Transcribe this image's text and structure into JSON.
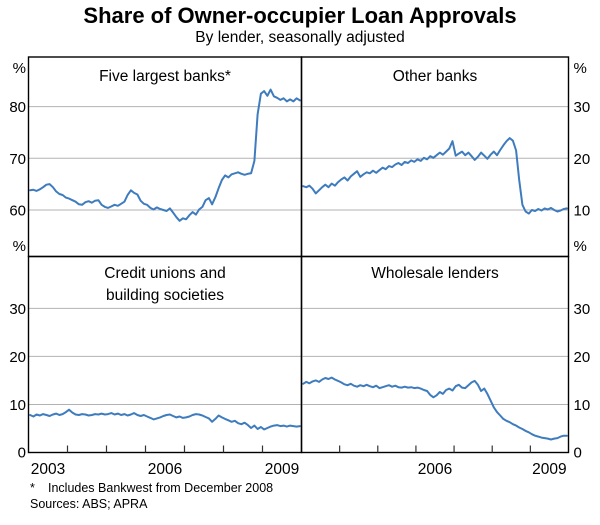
{
  "header": {
    "title": "Share of Owner-occupier Loan Approvals",
    "subtitle": "By lender, seasonally adjusted"
  },
  "footnotes": {
    "marker": "*",
    "note": "Includes Bankwest from December 2008",
    "sources": "Sources: ABS; APRA"
  },
  "chart_data": {
    "type": "line",
    "title": "Share of Owner-occupier Loan Approvals",
    "subtitle": "By lender, seasonally adjusted",
    "unit": "%",
    "frequency": "monthly",
    "start": "2003-01",
    "end": "2009-12",
    "x_range": [
      2003,
      2010
    ],
    "x_ticks": [
      2004,
      2005,
      2006,
      2007,
      2008,
      2009
    ],
    "line_color": "#3E7CBE",
    "grid_color": "#b3b3b3",
    "border_color": "#000000",
    "panels": [
      {
        "key": "five_largest_banks",
        "title_lines": [
          "Five largest banks*"
        ],
        "position": "top-left",
        "axis_side": "left",
        "unit_label": "%",
        "ylim": [
          51,
          89.6
        ],
        "gridlines": [
          60,
          70,
          80
        ],
        "zero_label": false,
        "x_labels": [],
        "series": [
          63.8,
          63.9,
          63.7,
          64.0,
          64.4,
          64.9,
          65.0,
          64.4,
          63.6,
          63.1,
          62.9,
          62.4,
          62.2,
          61.9,
          61.6,
          61.1,
          61.0,
          61.5,
          61.7,
          61.4,
          61.8,
          61.9,
          61.0,
          60.6,
          60.4,
          60.7,
          61.0,
          60.8,
          61.2,
          61.6,
          62.9,
          63.8,
          63.3,
          63.0,
          61.8,
          61.2,
          61.0,
          60.4,
          60.1,
          60.5,
          60.2,
          60.0,
          59.8,
          60.3,
          59.5,
          58.6,
          57.9,
          58.4,
          58.2,
          59.0,
          59.6,
          59.1,
          60.1,
          60.6,
          61.9,
          62.3,
          61.1,
          62.5,
          64.2,
          65.8,
          66.7,
          66.3,
          66.9,
          67.1,
          67.3,
          67.0,
          66.8,
          67.0,
          67.1,
          69.5,
          78.5,
          82.5,
          83.0,
          82.1,
          83.3,
          82.0,
          81.7,
          81.3,
          81.6,
          81.0,
          81.4,
          81.0,
          81.6,
          81.2
        ]
      },
      {
        "key": "other_banks",
        "title_lines": [
          "Other banks"
        ],
        "position": "top-right",
        "axis_side": "right",
        "unit_label": "%",
        "ylim": [
          1,
          39.6
        ],
        "gridlines": [
          10,
          20,
          30
        ],
        "zero_label": false,
        "x_labels": [],
        "series": [
          14.6,
          14.4,
          14.7,
          14.1,
          13.2,
          13.8,
          14.4,
          14.9,
          14.4,
          15.1,
          14.7,
          15.4,
          15.9,
          16.3,
          15.7,
          16.5,
          17.0,
          17.5,
          16.4,
          16.9,
          17.3,
          17.1,
          17.6,
          17.2,
          17.7,
          18.2,
          17.9,
          18.5,
          18.3,
          18.8,
          19.1,
          18.7,
          19.3,
          19.1,
          19.6,
          19.3,
          19.8,
          19.5,
          20.1,
          19.8,
          20.4,
          20.1,
          20.6,
          21.1,
          20.7,
          21.3,
          21.9,
          23.3,
          20.5,
          20.9,
          21.3,
          20.6,
          21.1,
          20.4,
          19.7,
          20.3,
          21.1,
          20.5,
          19.9,
          20.7,
          21.3,
          20.6,
          21.6,
          22.5,
          23.3,
          23.9,
          23.4,
          21.5,
          15.8,
          11.0,
          9.7,
          9.3,
          10.0,
          9.8,
          10.2,
          9.9,
          10.3,
          10.1,
          10.4,
          10.0,
          9.7,
          9.9,
          10.2,
          10.3
        ]
      },
      {
        "key": "credit_unions_building_societies",
        "title_lines": [
          "Credit unions and",
          "building societies"
        ],
        "position": "bottom-left",
        "axis_side": "left",
        "unit_label": "%",
        "ylim": [
          0,
          40.8
        ],
        "gridlines": [
          10,
          20,
          30
        ],
        "zero_label": true,
        "x_labels": [
          {
            "label": "2003",
            "at": 2003.5
          },
          {
            "label": "2006",
            "at": 2006.5
          },
          {
            "label": "2009",
            "at": 2009.5
          }
        ],
        "series": [
          7.8,
          7.5,
          7.9,
          7.7,
          8.0,
          7.8,
          7.6,
          7.9,
          8.1,
          7.8,
          8.0,
          8.4,
          8.9,
          8.3,
          7.9,
          7.8,
          8.0,
          7.9,
          7.7,
          7.8,
          8.0,
          7.9,
          8.1,
          7.9,
          8.0,
          8.2,
          7.9,
          8.1,
          7.8,
          8.0,
          7.7,
          7.9,
          8.2,
          7.8,
          7.6,
          7.8,
          7.5,
          7.2,
          6.9,
          7.1,
          7.3,
          7.6,
          7.8,
          7.9,
          7.6,
          7.3,
          7.5,
          7.2,
          7.3,
          7.5,
          7.8,
          8.0,
          7.9,
          7.7,
          7.4,
          7.1,
          6.4,
          7.0,
          7.7,
          7.3,
          7.0,
          6.7,
          6.4,
          6.6,
          6.1,
          5.9,
          6.2,
          5.7,
          5.1,
          5.6,
          4.9,
          5.3,
          4.8,
          5.1,
          5.4,
          5.6,
          5.7,
          5.5,
          5.6,
          5.4,
          5.6,
          5.5,
          5.4,
          5.5
        ]
      },
      {
        "key": "wholesale_lenders",
        "title_lines": [
          "Wholesale lenders"
        ],
        "position": "bottom-right",
        "axis_side": "right",
        "unit_label": "%",
        "ylim": [
          0,
          40.8
        ],
        "gridlines": [
          10,
          20,
          30
        ],
        "zero_label": true,
        "x_labels": [
          {
            "label": "2006",
            "at": 2006.5
          },
          {
            "label": "2009",
            "at": 2009.5
          }
        ],
        "series": [
          14.3,
          14.7,
          14.4,
          14.8,
          15.0,
          14.7,
          15.2,
          15.5,
          15.3,
          15.6,
          15.2,
          14.9,
          14.6,
          14.2,
          14.0,
          14.3,
          13.9,
          13.7,
          14.0,
          13.8,
          14.1,
          13.8,
          13.6,
          13.9,
          13.4,
          13.6,
          13.8,
          14.0,
          13.7,
          13.9,
          13.6,
          13.5,
          13.7,
          13.5,
          13.6,
          13.4,
          13.5,
          13.3,
          13.0,
          12.8,
          12.0,
          11.5,
          11.9,
          12.6,
          12.2,
          13.0,
          13.3,
          12.9,
          13.8,
          14.1,
          13.5,
          13.4,
          14.0,
          14.6,
          14.9,
          14.1,
          12.8,
          13.3,
          12.2,
          10.8,
          9.4,
          8.4,
          7.7,
          7.0,
          6.6,
          6.3,
          5.9,
          5.6,
          5.2,
          4.9,
          4.5,
          4.2,
          3.8,
          3.5,
          3.3,
          3.1,
          3.0,
          2.9,
          2.7,
          2.9,
          3.0,
          3.3,
          3.5,
          3.5
        ]
      }
    ]
  }
}
